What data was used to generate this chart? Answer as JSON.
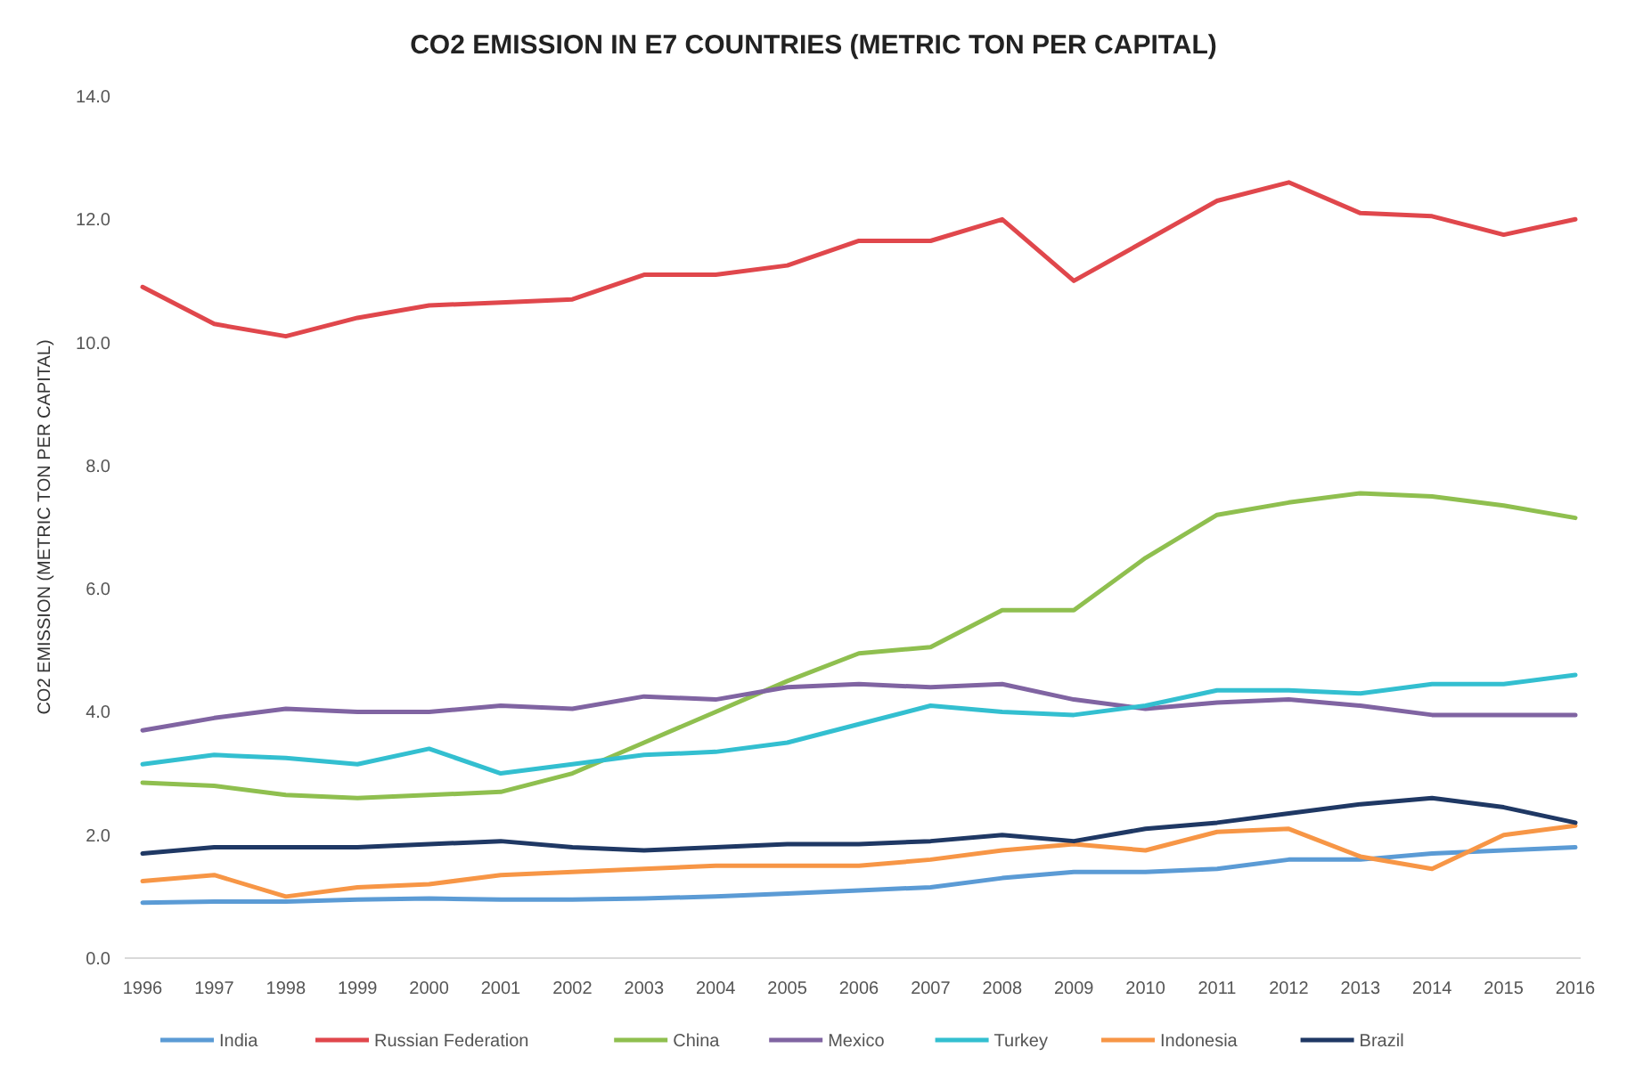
{
  "chart_data": {
    "type": "line",
    "title": "CO2 EMISSION IN E7 COUNTRIES (METRIC TON PER CAPITAL)",
    "ylabel": "CO2 EMISSION (METRIC TON PER CAPITAL)",
    "categories": [
      "1996",
      "1997",
      "1998",
      "1999",
      "2000",
      "2001",
      "2002",
      "2003",
      "2004",
      "2005",
      "2006",
      "2007",
      "2008",
      "2009",
      "2010",
      "2011",
      "2012",
      "2013",
      "2014",
      "2015",
      "2016"
    ],
    "ylim": [
      0,
      14
    ],
    "yticks": [
      {
        "value": 0,
        "label": "0.0"
      },
      {
        "value": 2,
        "label": "2.0"
      },
      {
        "value": 4,
        "label": "4.0"
      },
      {
        "value": 6,
        "label": "6.0"
      },
      {
        "value": 8,
        "label": "8.0"
      },
      {
        "value": 10,
        "label": "10.0"
      },
      {
        "value": 12,
        "label": "12.0"
      },
      {
        "value": 14,
        "label": "14.0"
      }
    ],
    "grid": false,
    "legend": "bottom",
    "marker": "none",
    "line_style": "solid",
    "series": [
      {
        "name": "India",
        "color": "#5b9bd5",
        "values": [
          0.9,
          0.92,
          0.92,
          0.95,
          0.97,
          0.95,
          0.95,
          0.97,
          1.0,
          1.05,
          1.1,
          1.15,
          1.3,
          1.4,
          1.4,
          1.45,
          1.6,
          1.6,
          1.7,
          1.75,
          1.8
        ]
      },
      {
        "name": "Russian Federation",
        "color": "#e0474c",
        "values": [
          10.9,
          10.3,
          10.1,
          10.4,
          10.6,
          10.65,
          10.7,
          11.1,
          11.1,
          11.25,
          11.65,
          11.65,
          12.0,
          11.0,
          11.65,
          12.3,
          12.6,
          12.1,
          12.05,
          11.75,
          12.0
        ]
      },
      {
        "name": "China",
        "color": "#8fbf4f",
        "values": [
          2.85,
          2.8,
          2.65,
          2.6,
          2.65,
          2.7,
          3.0,
          3.5,
          4.0,
          4.5,
          4.95,
          5.05,
          5.65,
          5.65,
          6.5,
          7.2,
          7.4,
          7.55,
          7.5,
          7.35,
          7.15
        ]
      },
      {
        "name": "Mexico",
        "color": "#8064a2",
        "values": [
          3.7,
          3.9,
          4.05,
          4.0,
          4.0,
          4.1,
          4.05,
          4.25,
          4.2,
          4.4,
          4.45,
          4.4,
          4.45,
          4.2,
          4.05,
          4.15,
          4.2,
          4.1,
          3.95,
          3.95,
          3.95
        ]
      },
      {
        "name": "Turkey",
        "color": "#33bfd0",
        "values": [
          3.15,
          3.3,
          3.25,
          3.15,
          3.4,
          3.0,
          3.15,
          3.3,
          3.35,
          3.5,
          3.8,
          4.1,
          4.0,
          3.95,
          4.1,
          4.35,
          4.35,
          4.3,
          4.45,
          4.45,
          4.6
        ]
      },
      {
        "name": "Indonesia",
        "color": "#f79646",
        "values": [
          1.25,
          1.35,
          1.0,
          1.15,
          1.2,
          1.35,
          1.4,
          1.45,
          1.5,
          1.5,
          1.5,
          1.6,
          1.75,
          1.85,
          1.75,
          2.05,
          2.1,
          1.65,
          1.45,
          2.0,
          2.15
        ]
      },
      {
        "name": "Brazil",
        "color": "#1f3864",
        "values": [
          1.7,
          1.8,
          1.8,
          1.8,
          1.85,
          1.9,
          1.8,
          1.75,
          1.8,
          1.85,
          1.85,
          1.9,
          2.0,
          1.9,
          2.1,
          2.2,
          2.35,
          2.5,
          2.6,
          2.45,
          2.2
        ]
      }
    ]
  }
}
